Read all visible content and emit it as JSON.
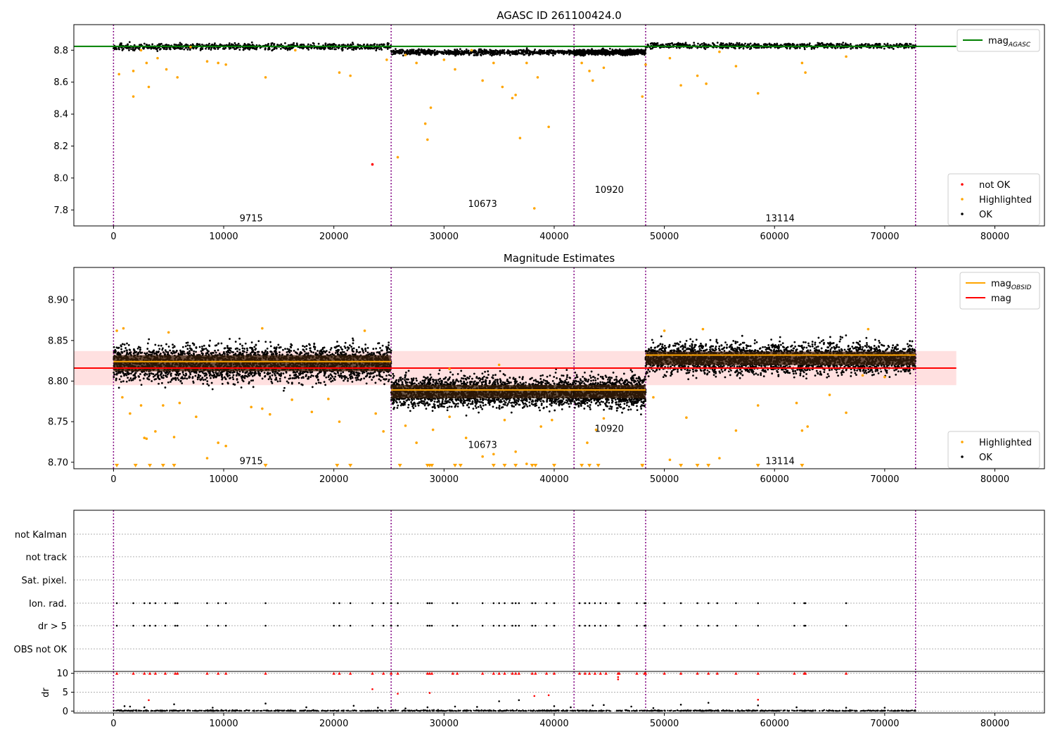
{
  "chart_data": [
    {
      "type": "scatter",
      "title": "AGASC ID 261100424.0",
      "xlim": [
        -3600,
        84500
      ],
      "ylim": [
        7.7,
        8.96
      ],
      "xticks": [
        0,
        10000,
        20000,
        30000,
        40000,
        50000,
        60000,
        70000,
        80000
      ],
      "yticks": [
        7.8,
        8.0,
        8.2,
        8.4,
        8.6,
        8.8
      ],
      "ytick_labels": [
        "7.8",
        "8.0",
        "8.2",
        "8.4",
        "8.6",
        "8.8"
      ],
      "obs_boundaries": [
        0,
        25200,
        41800,
        48300,
        72800
      ],
      "obs_labels": [
        {
          "text": "9715",
          "x": 12500,
          "y": 7.75
        },
        {
          "text": "10673",
          "x": 33500,
          "y": 7.84
        },
        {
          "text": "10920",
          "x": 45000,
          "y": 7.93
        },
        {
          "text": "13114",
          "x": 60500,
          "y": 7.75
        }
      ],
      "bands": [
        {
          "x0": 0,
          "x1": 25200,
          "center": 8.822,
          "half": 0.018
        },
        {
          "x0": 25200,
          "x1": 41800,
          "center": 8.787,
          "half": 0.015
        },
        {
          "x0": 41800,
          "x1": 48300,
          "center": 8.787,
          "half": 0.015
        },
        {
          "x0": 48300,
          "x1": 72800,
          "center": 8.828,
          "half": 0.015
        }
      ],
      "mag_agasc": {
        "value": 8.824,
        "x": [
          -3600,
          76500
        ]
      },
      "not_ok": [
        [
          23500,
          8.085
        ]
      ],
      "highlighted": [
        [
          500,
          8.65
        ],
        [
          1800,
          8.51
        ],
        [
          1800,
          8.67
        ],
        [
          2500,
          8.8
        ],
        [
          3000,
          8.72
        ],
        [
          3200,
          8.57
        ],
        [
          4000,
          8.75
        ],
        [
          4800,
          8.68
        ],
        [
          5800,
          8.63
        ],
        [
          7000,
          8.82
        ],
        [
          8500,
          8.73
        ],
        [
          9500,
          8.72
        ],
        [
          10200,
          8.71
        ],
        [
          13800,
          8.63
        ],
        [
          16500,
          8.8
        ],
        [
          20500,
          8.66
        ],
        [
          21500,
          8.64
        ],
        [
          24800,
          8.74
        ],
        [
          25800,
          8.13
        ],
        [
          26500,
          8.77
        ],
        [
          27500,
          8.72
        ],
        [
          28300,
          8.34
        ],
        [
          28500,
          8.24
        ],
        [
          28800,
          8.44
        ],
        [
          30000,
          8.74
        ],
        [
          31000,
          8.68
        ],
        [
          32500,
          8.8
        ],
        [
          33500,
          8.61
        ],
        [
          34500,
          8.72
        ],
        [
          35300,
          8.57
        ],
        [
          36200,
          8.5
        ],
        [
          36500,
          8.52
        ],
        [
          36900,
          8.25
        ],
        [
          37500,
          8.72
        ],
        [
          38200,
          7.81
        ],
        [
          38500,
          8.63
        ],
        [
          39500,
          8.32
        ],
        [
          42500,
          8.72
        ],
        [
          43200,
          8.67
        ],
        [
          43500,
          8.61
        ],
        [
          44500,
          8.69
        ],
        [
          48000,
          8.51
        ],
        [
          48300,
          8.71
        ],
        [
          50500,
          8.75
        ],
        [
          51500,
          8.58
        ],
        [
          53000,
          8.64
        ],
        [
          53800,
          8.59
        ],
        [
          55000,
          8.79
        ],
        [
          56500,
          8.7
        ],
        [
          58500,
          8.53
        ],
        [
          62500,
          8.72
        ],
        [
          62800,
          8.66
        ],
        [
          66500,
          8.76
        ]
      ],
      "legend_upper": [
        {
          "label": "mag_AGASC",
          "color": "#008000",
          "kind": "line"
        }
      ],
      "legend_lower": [
        {
          "label": "not OK",
          "color": "#ff0000",
          "kind": "dot"
        },
        {
          "label": "Highlighted",
          "color": "#ffa500",
          "kind": "dot"
        },
        {
          "label": "OK",
          "color": "#000000",
          "kind": "dot"
        }
      ]
    },
    {
      "type": "scatter",
      "title": "Magnitude Estimates",
      "xlim": [
        -3600,
        84500
      ],
      "ylim": [
        8.692,
        8.94
      ],
      "xticks": [
        0,
        10000,
        20000,
        30000,
        40000,
        50000,
        60000,
        70000,
        80000
      ],
      "yticks": [
        8.7,
        8.75,
        8.8,
        8.85,
        8.9
      ],
      "ytick_labels": [
        "8.70",
        "8.75",
        "8.80",
        "8.85",
        "8.90"
      ],
      "obs_boundaries": [
        0,
        25200,
        41800,
        48300,
        72800
      ],
      "obs_labels": [
        {
          "text": "9715",
          "x": 12500,
          "y": 8.702
        },
        {
          "text": "10673",
          "x": 33500,
          "y": 8.722
        },
        {
          "text": "10920",
          "x": 45000,
          "y": 8.742
        },
        {
          "text": "13114",
          "x": 60500,
          "y": 8.702
        }
      ],
      "bands": [
        {
          "x0": 0,
          "x1": 25200,
          "center": 8.822,
          "half": 0.018
        },
        {
          "x0": 25200,
          "x1": 41800,
          "center": 8.787,
          "half": 0.015
        },
        {
          "x0": 41800,
          "x1": 48300,
          "center": 8.787,
          "half": 0.015
        },
        {
          "x0": 48300,
          "x1": 72800,
          "center": 8.828,
          "half": 0.015
        }
      ],
      "mag_obsid": [
        {
          "x0": 0,
          "x1": 25200,
          "value": 8.824
        },
        {
          "x0": 25200,
          "x1": 41800,
          "value": 8.789
        },
        {
          "x0": 41800,
          "x1": 48300,
          "value": 8.789
        },
        {
          "x0": 48300,
          "x1": 72800,
          "value": 8.832
        }
      ],
      "mag": {
        "value": 8.816,
        "low": 8.795,
        "high": 8.837,
        "x": [
          -3600,
          76500
        ]
      },
      "highlighted": [
        [
          800,
          8.78
        ],
        [
          1500,
          8.76
        ],
        [
          2500,
          8.77
        ],
        [
          2800,
          8.73
        ],
        [
          3000,
          8.729
        ],
        [
          3800,
          8.738
        ],
        [
          4500,
          8.77
        ],
        [
          5500,
          8.731
        ],
        [
          6000,
          8.773
        ],
        [
          7500,
          8.756
        ],
        [
          8500,
          8.705
        ],
        [
          9500,
          8.724
        ],
        [
          10200,
          8.72
        ],
        [
          12500,
          8.768
        ],
        [
          13500,
          8.766
        ],
        [
          14200,
          8.759
        ],
        [
          16200,
          8.777
        ],
        [
          18000,
          8.762
        ],
        [
          19500,
          8.778
        ],
        [
          20500,
          8.75
        ],
        [
          24500,
          8.738
        ],
        [
          23800,
          8.76
        ],
        [
          26500,
          8.745
        ],
        [
          27500,
          8.724
        ],
        [
          29000,
          8.74
        ],
        [
          30500,
          8.756
        ],
        [
          32000,
          8.73
        ],
        [
          33500,
          8.707
        ],
        [
          34500,
          8.71
        ],
        [
          35500,
          8.752
        ],
        [
          36500,
          8.713
        ],
        [
          37500,
          8.698
        ],
        [
          38800,
          8.744
        ],
        [
          39800,
          8.752
        ],
        [
          43000,
          8.724
        ],
        [
          43800,
          8.74
        ],
        [
          44500,
          8.754
        ],
        [
          48000,
          8.696
        ],
        [
          49000,
          8.78
        ],
        [
          50500,
          8.703
        ],
        [
          52000,
          8.755
        ],
        [
          55000,
          8.705
        ],
        [
          56500,
          8.739
        ],
        [
          58500,
          8.77
        ],
        [
          62000,
          8.773
        ],
        [
          62500,
          8.739
        ],
        [
          63000,
          8.744
        ],
        [
          65000,
          8.783
        ],
        [
          66500,
          8.761
        ],
        [
          68000,
          8.807
        ],
        [
          70000,
          8.805
        ],
        [
          300,
          8.862
        ],
        [
          900,
          8.865
        ],
        [
          5000,
          8.86
        ],
        [
          13500,
          8.865
        ],
        [
          22800,
          8.862
        ],
        [
          50000,
          8.862
        ],
        [
          53500,
          8.864
        ],
        [
          68500,
          8.864
        ],
        [
          30500,
          8.815
        ],
        [
          35000,
          8.82
        ]
      ],
      "below_range_x": [
        300,
        2000,
        3300,
        4500,
        5500,
        13800,
        20300,
        21500,
        26000,
        28500,
        28700,
        28900,
        31000,
        31500,
        34500,
        35500,
        36500,
        38000,
        38300,
        40000,
        42500,
        43200,
        44000,
        48000,
        51500,
        53000,
        54000,
        58500,
        62500
      ],
      "legend_upper": [
        {
          "label": "mag_OBSID",
          "color": "#ffa500",
          "kind": "line"
        },
        {
          "label": "mag",
          "color": "#ff0000",
          "kind": "line"
        }
      ],
      "legend_lower": [
        {
          "label": "Highlighted",
          "color": "#ffa500",
          "kind": "dot"
        },
        {
          "label": "OK",
          "color": "#000000",
          "kind": "dot"
        }
      ]
    },
    {
      "type": "scatter",
      "title": "",
      "xlim": [
        -3600,
        84500
      ],
      "xticks": [
        0,
        10000,
        20000,
        30000,
        40000,
        50000,
        60000,
        70000,
        80000
      ],
      "obs_boundaries": [
        0,
        25200,
        41800,
        48300,
        72800
      ],
      "flag_rows": [
        "not Kalman",
        "not track",
        "Sat. pixel.",
        "Ion. rad.",
        "dr > 5",
        "OBS not OK"
      ],
      "flag_events_x": [
        300,
        1800,
        2800,
        3300,
        3800,
        4700,
        5600,
        5800,
        8500,
        9500,
        10200,
        13800,
        20000,
        20500,
        21500,
        23500,
        24500,
        25200,
        25800,
        28500,
        28700,
        28900,
        30800,
        31200,
        33500,
        34500,
        35000,
        35500,
        36200,
        36500,
        36800,
        38000,
        38300,
        39300,
        40000,
        42300,
        42800,
        43200,
        43700,
        44200,
        44700,
        45800,
        45900,
        47500,
        48200,
        48300,
        50000,
        51500,
        53000,
        54000,
        54800,
        56500,
        58500,
        61800,
        62700,
        62800,
        66500
      ],
      "dr_label": "dr",
      "dr_ylim": [
        -0.5,
        10.5
      ],
      "dr_yticks": [
        0,
        5,
        10
      ],
      "dr_red": [
        [
          23500,
          5.8
        ],
        [
          25800,
          4.6
        ],
        [
          28700,
          4.8
        ],
        [
          38200,
          4.0
        ],
        [
          39500,
          4.2
        ],
        [
          45800,
          8.4
        ],
        [
          45800,
          9.0
        ],
        [
          58500,
          3.0
        ],
        [
          3200,
          2.9
        ]
      ],
      "dr_black": [
        [
          1000,
          1.3
        ],
        [
          1500,
          1.2
        ],
        [
          2800,
          1.0
        ],
        [
          5500,
          1.8
        ],
        [
          9000,
          0.9
        ],
        [
          13800,
          2.0
        ],
        [
          17500,
          1.0
        ],
        [
          21800,
          1.4
        ],
        [
          24000,
          0.9
        ],
        [
          26500,
          0.7
        ],
        [
          28500,
          1.0
        ],
        [
          31000,
          1.2
        ],
        [
          33000,
          1.1
        ],
        [
          35000,
          2.6
        ],
        [
          36800,
          2.9
        ],
        [
          40000,
          1.3
        ],
        [
          41500,
          1.0
        ],
        [
          43500,
          1.5
        ],
        [
          44500,
          1.6
        ],
        [
          47000,
          1.2
        ],
        [
          49000,
          0.8
        ],
        [
          51500,
          1.7
        ],
        [
          54000,
          2.2
        ],
        [
          58500,
          1.5
        ],
        [
          62000,
          1.0
        ],
        [
          66500,
          0.9
        ],
        [
          70000,
          0.9
        ]
      ]
    }
  ]
}
